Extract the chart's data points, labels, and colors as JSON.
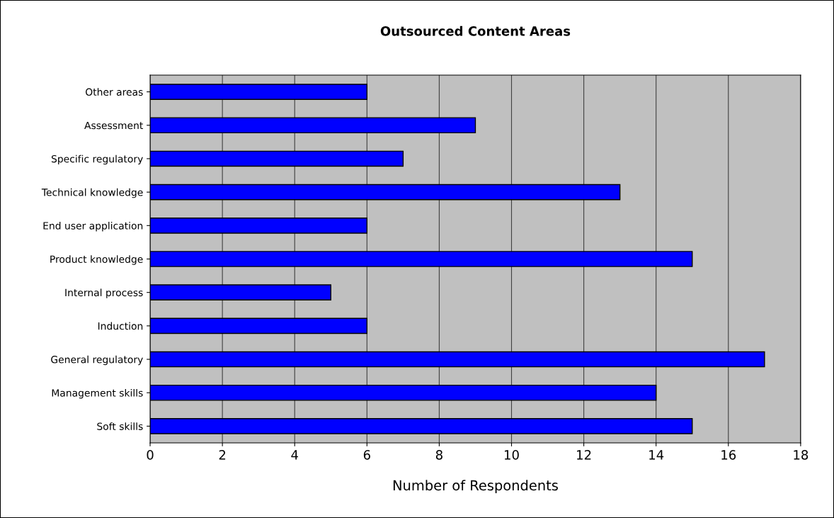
{
  "chart_data": {
    "type": "bar",
    "orientation": "horizontal",
    "title": "Outsourced Content Areas",
    "xlabel": "Number of Respondents",
    "categories": [
      "Other areas",
      "Assessment",
      "Specific regulatory",
      "Technical knowledge",
      "End user application",
      "Product knowledge",
      "Internal process",
      "Induction",
      "General regulatory",
      "Management skills",
      "Soft skills"
    ],
    "values": [
      6,
      9,
      7,
      13,
      6,
      15,
      5,
      6,
      17,
      14,
      15
    ],
    "color": "#0000ff",
    "xlim": [
      0,
      18
    ],
    "xticks": [
      0,
      2,
      4,
      6,
      8,
      10,
      12,
      14,
      16,
      18
    ],
    "grid": "x",
    "legend": false
  }
}
